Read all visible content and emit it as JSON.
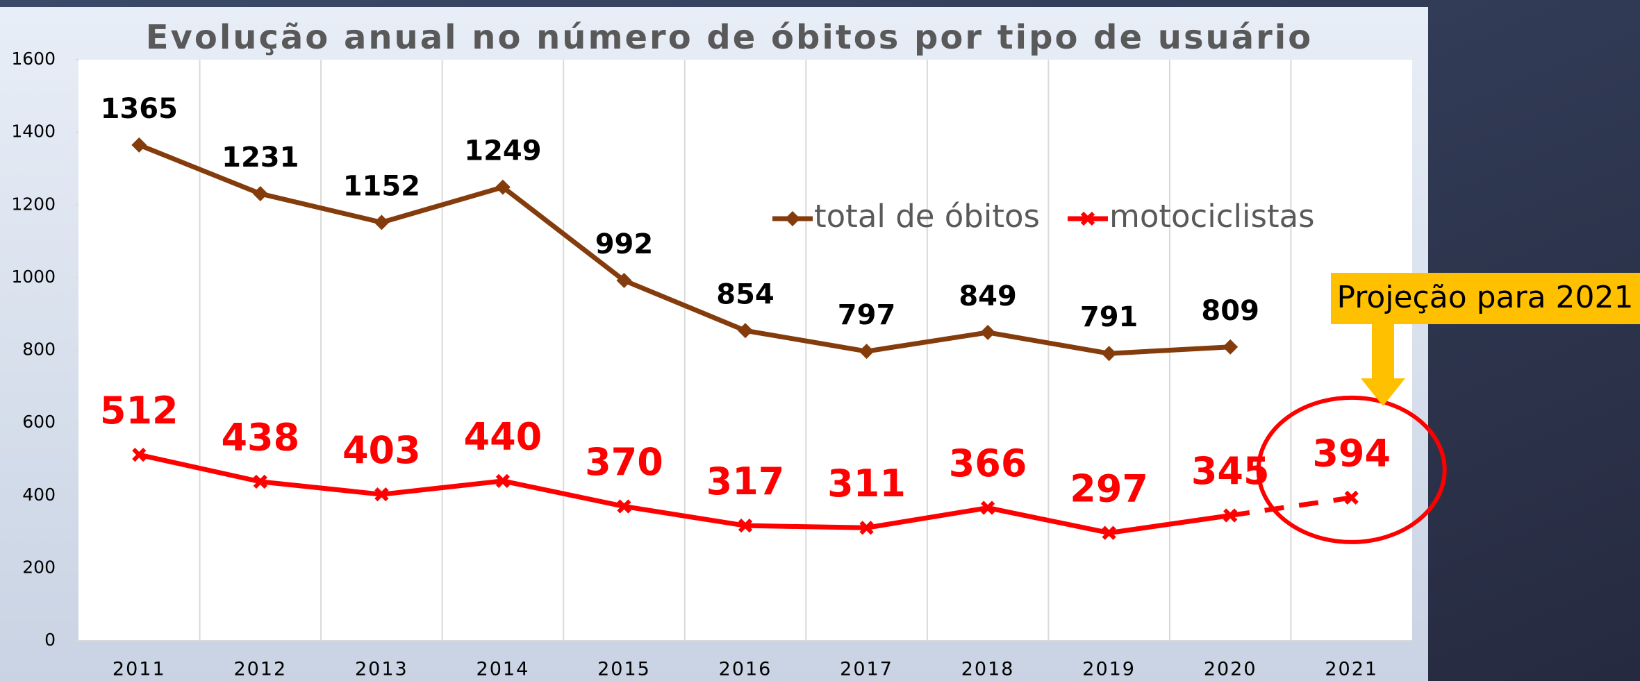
{
  "chart_data": {
    "type": "line",
    "title": "Evolução anual no número de óbitos por tipo de usuário",
    "categories": [
      "2011",
      "2012",
      "2013",
      "2014",
      "2015",
      "2016",
      "2017",
      "2018",
      "2019",
      "2020",
      "2021"
    ],
    "series": [
      {
        "name": "total de óbitos",
        "color": "#843c0c",
        "values": [
          1365,
          1231,
          1152,
          1249,
          992,
          854,
          797,
          849,
          791,
          809,
          null
        ]
      },
      {
        "name": "motociclistas",
        "color": "#ff0000",
        "values": [
          512,
          438,
          403,
          440,
          370,
          317,
          311,
          366,
          297,
          345,
          394
        ]
      }
    ],
    "ylim": [
      0,
      1600
    ],
    "yticks": [
      0,
      200,
      400,
      600,
      800,
      1000,
      1200,
      1400,
      1600
    ],
    "grid": true,
    "annotation": "Projeção para 2021"
  }
}
